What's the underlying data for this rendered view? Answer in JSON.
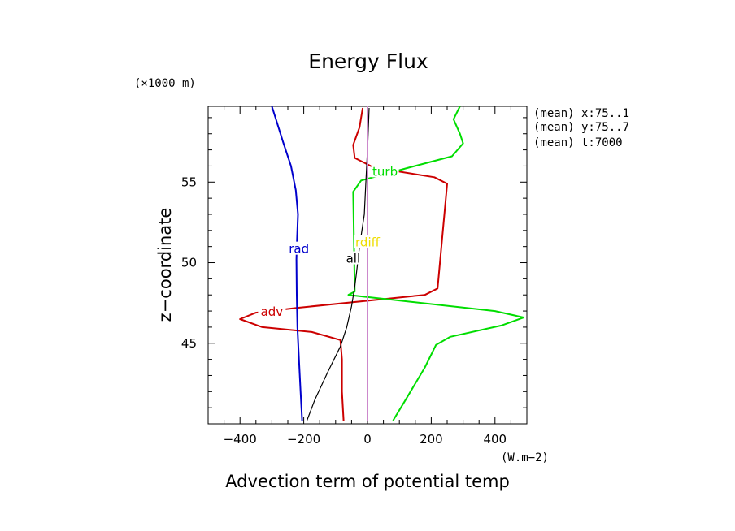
{
  "chart_data": {
    "type": "line",
    "title": "Energy Flux",
    "xlabel": "Advection term of potential temp",
    "xunit": "(W.m−2)",
    "ylabel": "z−coordinate",
    "yunit": "(×1000 m)",
    "xlim": [
      -500,
      500
    ],
    "ylim": [
      40,
      59.7
    ],
    "x_ticks": [
      -400,
      -200,
      0,
      200,
      400
    ],
    "x_tick_labels": [
      "−400",
      "−200",
      "0",
      "200",
      "400"
    ],
    "y_ticks": [
      45,
      50,
      55
    ],
    "y_tick_labels": [
      "45",
      "50",
      "55"
    ],
    "annotations": [
      "(mean) x:75..1",
      "(mean) y:75..7",
      "(mean) t:7000"
    ],
    "series": [
      {
        "name": "adv",
        "color": "#cc0000",
        "points": [
          [
            -75,
            40.2
          ],
          [
            -80,
            42
          ],
          [
            -80,
            44
          ],
          [
            -85,
            45.2
          ],
          [
            -175,
            45.7
          ],
          [
            -330,
            46.0
          ],
          [
            -400,
            46.5
          ],
          [
            -350,
            46.9
          ],
          [
            -220,
            47.2
          ],
          [
            180,
            48.0
          ],
          [
            220,
            48.4
          ],
          [
            250,
            54.9
          ],
          [
            210,
            55.3
          ],
          [
            20,
            55.9
          ],
          [
            -40,
            56.5
          ],
          [
            -45,
            57.3
          ],
          [
            -25,
            58.4
          ],
          [
            -15,
            59.6
          ]
        ],
        "label_at": [
          -300,
          46.9
        ]
      },
      {
        "name": "turb",
        "color": "#00dd00",
        "points": [
          [
            80,
            40.2
          ],
          [
            120,
            41.5
          ],
          [
            180,
            43.5
          ],
          [
            215,
            44.9
          ],
          [
            260,
            45.4
          ],
          [
            420,
            46.1
          ],
          [
            490,
            46.6
          ],
          [
            400,
            47.0
          ],
          [
            -60,
            48.0
          ],
          [
            -40,
            48.2
          ],
          [
            -45,
            54.4
          ],
          [
            -20,
            55.1
          ],
          [
            130,
            55.9
          ],
          [
            265,
            56.6
          ],
          [
            300,
            57.4
          ],
          [
            290,
            58.0
          ],
          [
            270,
            58.9
          ],
          [
            290,
            59.7
          ]
        ],
        "label_at": [
          55,
          55.6
        ]
      },
      {
        "name": "all",
        "color": "#000000",
        "points": [
          [
            -190,
            40.2
          ],
          [
            -165,
            41.5
          ],
          [
            -125,
            43.2
          ],
          [
            -85,
            44.8
          ],
          [
            -65,
            46.0
          ],
          [
            -50,
            47.3
          ],
          [
            -40,
            48.5
          ],
          [
            -35,
            49.3
          ],
          [
            -25,
            51.0
          ],
          [
            -10,
            53.0
          ],
          [
            -5,
            55.0
          ],
          [
            0,
            57.0
          ],
          [
            5,
            59.6
          ]
        ],
        "label_at": [
          -45,
          50.2
        ]
      },
      {
        "name": "rad",
        "color": "#0000cc",
        "points": [
          [
            -205,
            40.2
          ],
          [
            -210,
            42
          ],
          [
            -215,
            44
          ],
          [
            -220,
            46
          ],
          [
            -222,
            48
          ],
          [
            -223,
            50.2
          ],
          [
            -222,
            51
          ],
          [
            -218,
            53
          ],
          [
            -225,
            54.5
          ],
          [
            -240,
            56
          ],
          [
            -265,
            57.5
          ],
          [
            -300,
            59.7
          ]
        ],
        "label_at": [
          -215,
          50.8
        ]
      },
      {
        "name": "rdiff",
        "color": "#cc88cc",
        "points": [
          [
            0,
            40.2
          ],
          [
            0,
            59.7
          ]
        ],
        "label_at": [
          0,
          51.2
        ],
        "label_color": "#eedd00"
      }
    ]
  }
}
